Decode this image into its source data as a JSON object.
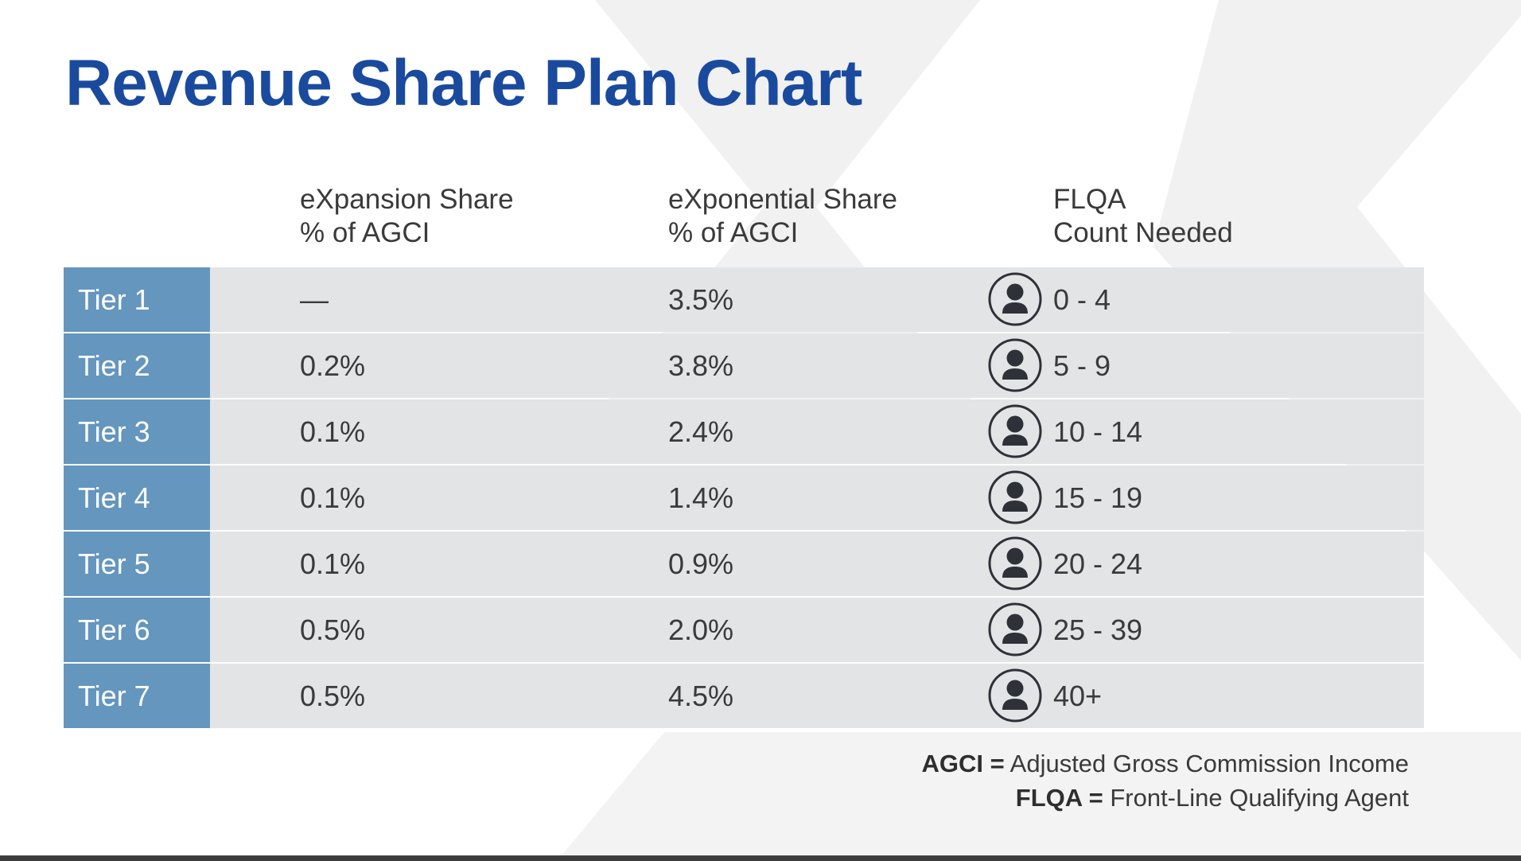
{
  "title": "Revenue Share Plan Chart",
  "columns": {
    "expansion": {
      "line1": "eXpansion Share",
      "line2": "% of AGCI"
    },
    "exponential": {
      "line1": "eXponential Share",
      "line2": "% of AGCI"
    },
    "flqa": {
      "line1": "FLQA",
      "line2": "Count Needed"
    }
  },
  "rows": [
    {
      "tier": "Tier 1",
      "expansion": "—",
      "exponential": "3.5%",
      "flqa": "0 - 4"
    },
    {
      "tier": "Tier 2",
      "expansion": "0.2%",
      "exponential": "3.8%",
      "flqa": "5 - 9"
    },
    {
      "tier": "Tier 3",
      "expansion": "0.1%",
      "exponential": "2.4%",
      "flqa": "10 - 14"
    },
    {
      "tier": "Tier 4",
      "expansion": "0.1%",
      "exponential": "1.4%",
      "flqa": "15 - 19"
    },
    {
      "tier": "Tier 5",
      "expansion": "0.1%",
      "exponential": "0.9%",
      "flqa": "20 - 24"
    },
    {
      "tier": "Tier 6",
      "expansion": "0.5%",
      "exponential": "2.0%",
      "flqa": "25 - 39"
    },
    {
      "tier": "Tier 7",
      "expansion": "0.5%",
      "exponential": "4.5%",
      "flqa": "40+"
    }
  ],
  "row_icon": "person-icon",
  "legend": [
    {
      "term": "AGCI =",
      "definition": " Adjusted Gross Commission Income"
    },
    {
      "term": "FLQA =",
      "definition": " Front-Line Qualifying Agent"
    }
  ],
  "colors": {
    "title": "#1a4a9e",
    "tier_cell": "#6496be",
    "row_background": "#e3e4e6",
    "icon": "#2e3138"
  }
}
